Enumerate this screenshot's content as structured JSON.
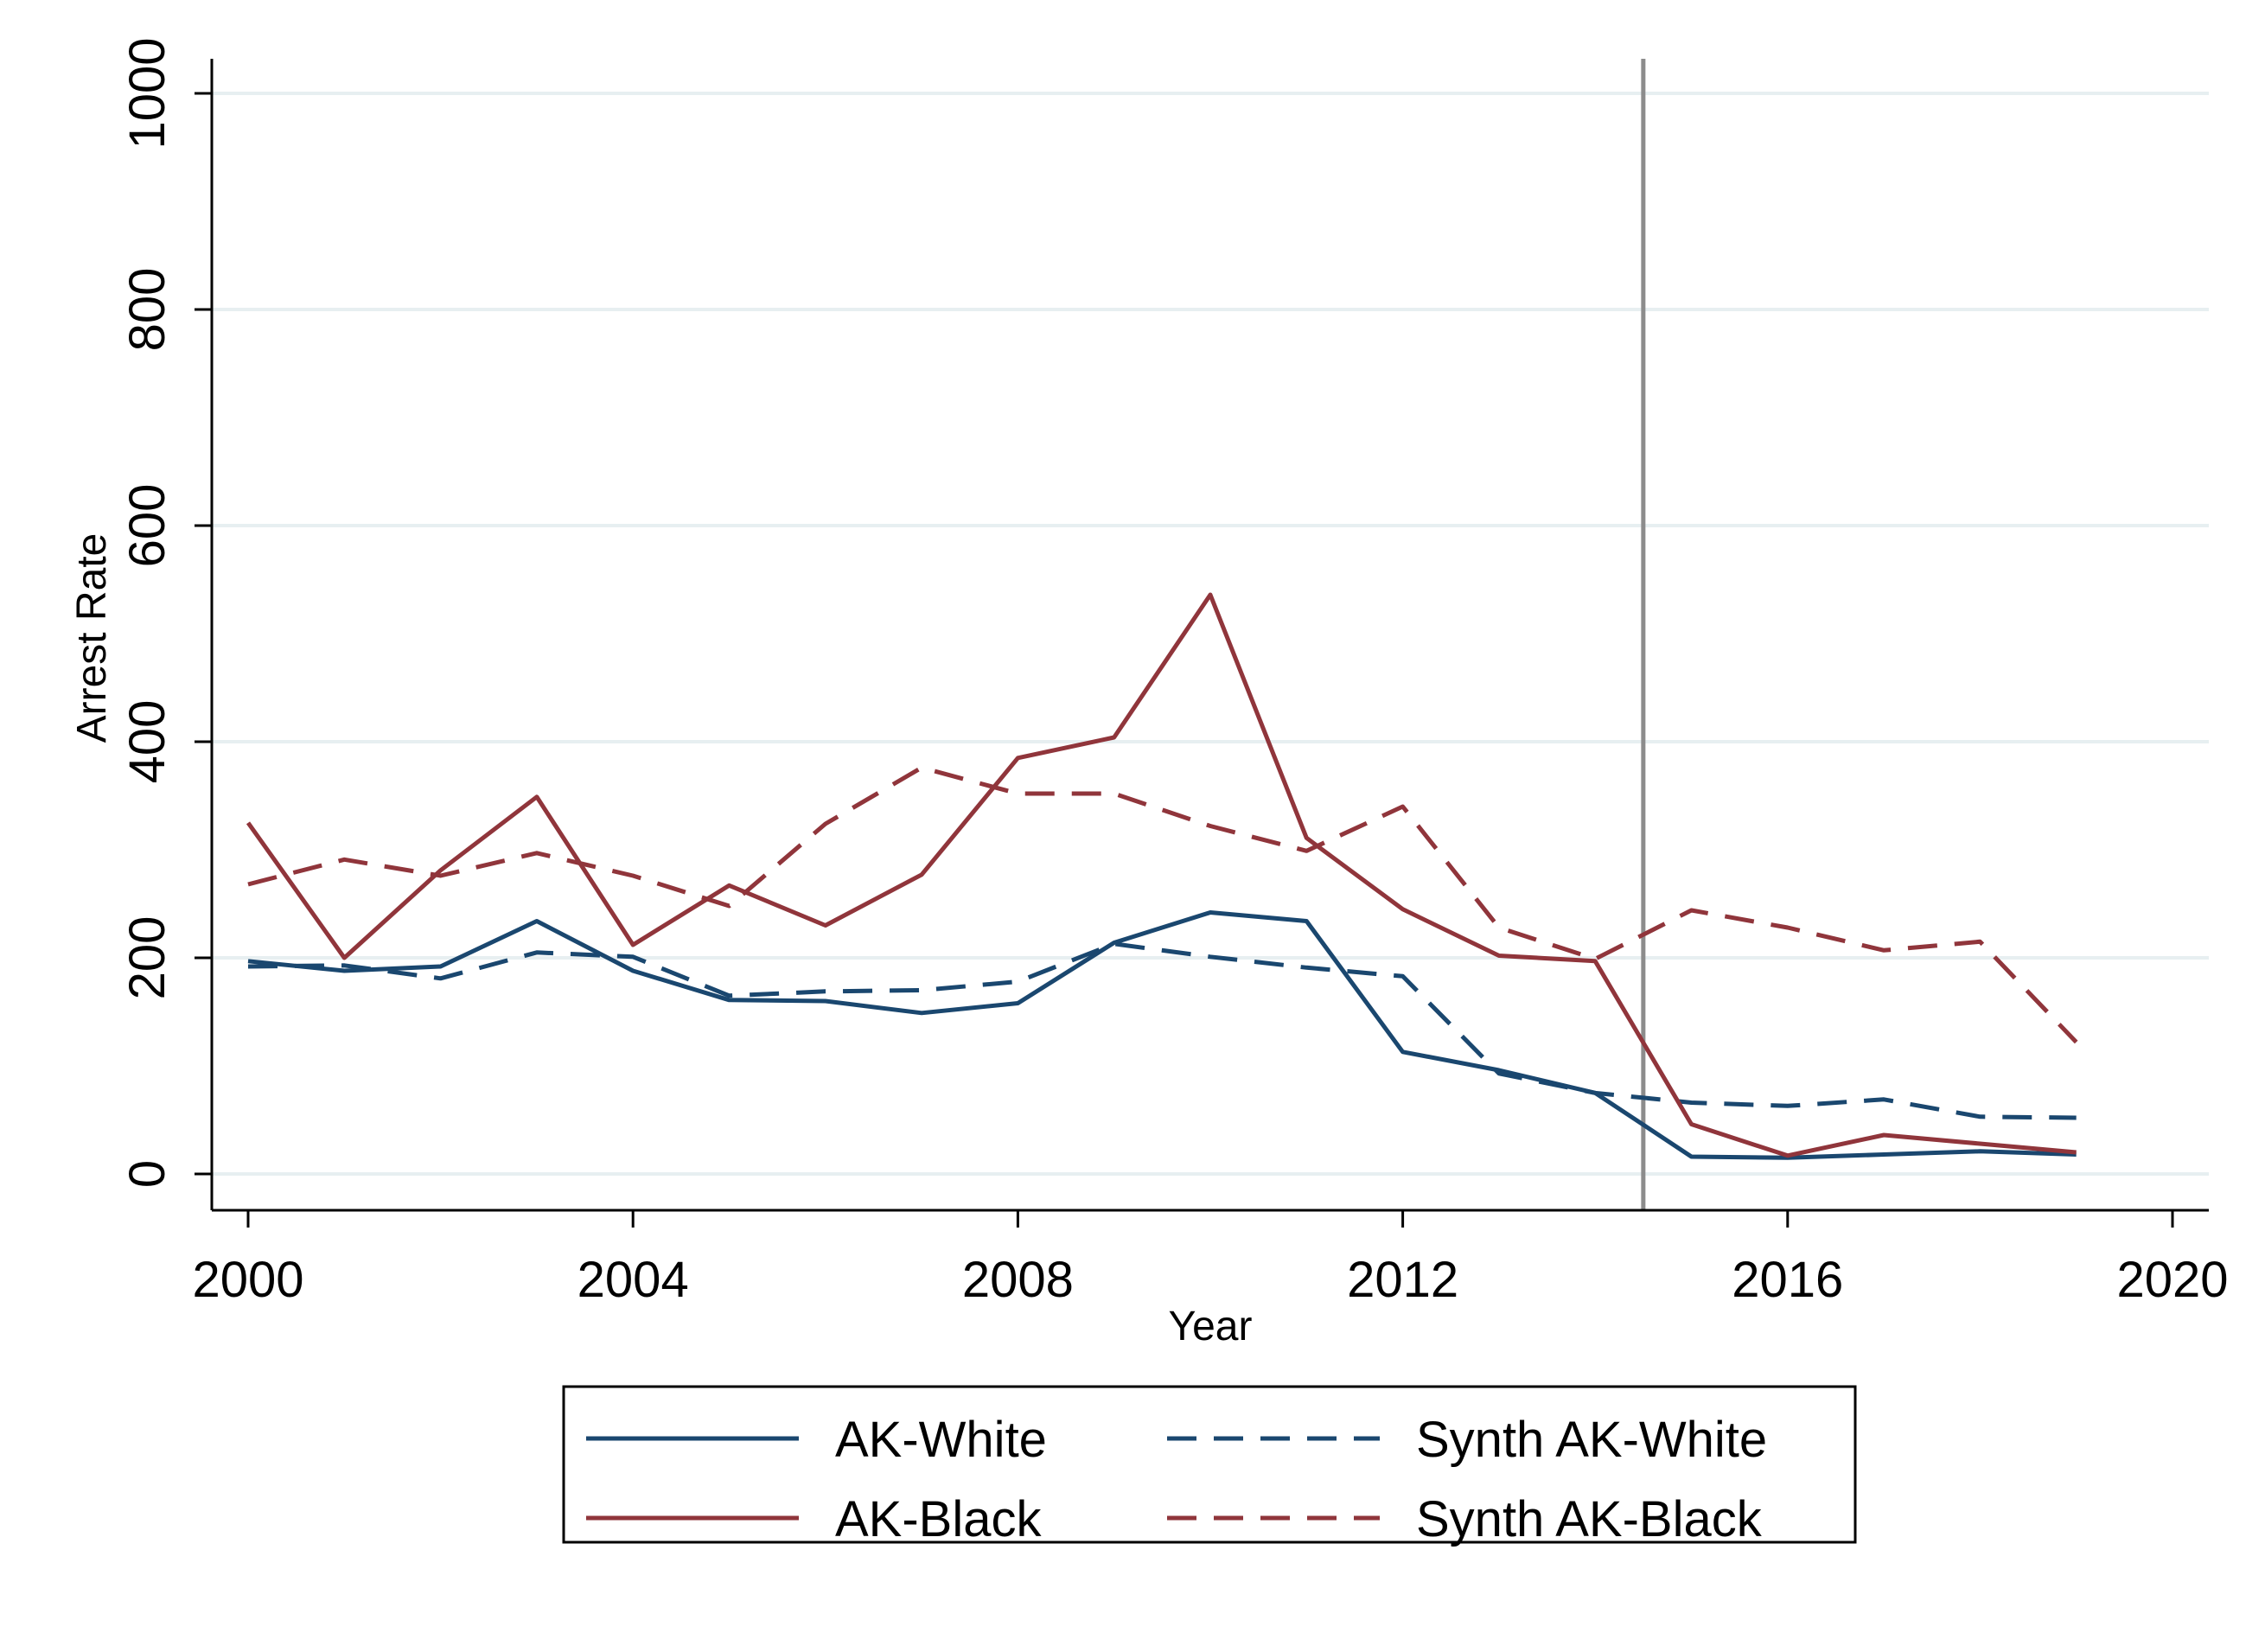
{
  "chart_data": {
    "type": "line",
    "title": "",
    "xlabel": "Year",
    "ylabel": "Arrest Rate",
    "xlim": [
      2000,
      2020
    ],
    "ylim": [
      0,
      1000
    ],
    "x_ticks": [
      "2000",
      "2004",
      "2008",
      "2012",
      "2016",
      "2020"
    ],
    "y_ticks": [
      "0",
      "200",
      "400",
      "600",
      "800",
      "1000"
    ],
    "grid": true,
    "vertical_reference_line": 2014.5,
    "legend_position": "bottom",
    "x": [
      2000,
      2001,
      2002,
      2003,
      2004,
      2005,
      2006,
      2007,
      2008,
      2009,
      2010,
      2011,
      2012,
      2013,
      2014,
      2015,
      2016,
      2017,
      2018,
      2019
    ],
    "series": [
      {
        "name": "AK-White",
        "color": "#1a476f",
        "style": "solid",
        "values": [
          197,
          188,
          192,
          234,
          188,
          161,
          160,
          149,
          158,
          214,
          242,
          234,
          113,
          96,
          75,
          16,
          15,
          18,
          21,
          18
        ]
      },
      {
        "name": "Synth AK-White",
        "color": "#1a476f",
        "style": "dashed",
        "values": [
          192,
          193,
          181,
          205,
          201,
          165,
          169,
          170,
          178,
          213,
          201,
          191,
          183,
          93,
          75,
          66,
          63,
          69,
          53,
          52
        ]
      },
      {
        "name": "AK-Black",
        "color": "#90353b",
        "style": "solid",
        "values": [
          325,
          200,
          281,
          349,
          212,
          267,
          230,
          277,
          385,
          404,
          536,
          311,
          245,
          202,
          197,
          46,
          17,
          36,
          28,
          20
        ]
      },
      {
        "name": "Synth AK-Black",
        "color": "#90353b",
        "style": "dashed",
        "values": [
          268,
          291,
          276,
          297,
          276,
          248,
          324,
          376,
          352,
          352,
          322,
          299,
          340,
          228,
          199,
          244,
          228,
          207,
          215,
          122
        ]
      }
    ]
  }
}
